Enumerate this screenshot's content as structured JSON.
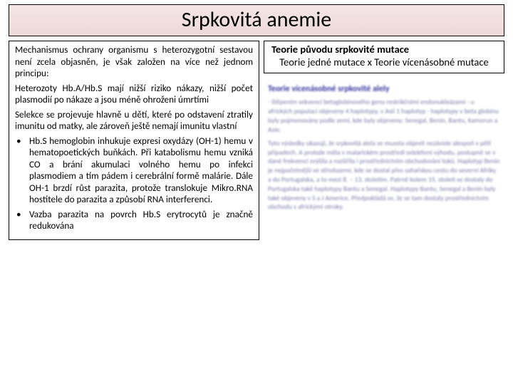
{
  "title": "Srpkovitá anemie",
  "left": {
    "p1": "Mechanismus ochrany organismu s heterozygotní sestavou není zcela objasněn, je však založen na více než jednom principu:",
    "p2": "Heterozoty Hb.A/Hb.S mají nižší riziko nákazy, nižší počet plasmodií po nákaze a jsou méně ohroženi úmrtími",
    "p3": "Selekce se projevuje hlavně u dětí, které po odstavení ztratily imunitu od matky, ale zároveň ještě nemají imunitu vlastní",
    "b1": "Hb.S hemoglobin inhukuje expresi oxydázy (OH-1) hemu v hematopoetických buňkách. Při katabolismu hemu vzniká CO a brání akumulaci volného hemu po infekci plasmodiem a tím pádem i cerebrální formě malárie. Dále OH-1 brzdí růst parazita, protože translokuje Mikro.RNA hostitele do parazita a způsobí RNA interferenci.",
    "b2": "Vazba parazita na povrch Hb.S erytrocytů je značně redukována"
  },
  "right": {
    "theory_title": "Teorie původu srpkovité mutace",
    "theory_sub": "Teorie jedné mutace x Teorie vícenásobné mutace",
    "blur_heading": "Teorie vícenásobné srpkovité alely",
    "blur_p1": "- štěpením sekvencí betaglobinového genu restrikčními endonukleázami\n- u afrických populací objeveny 4 haplotypy, v Asii 1 haplotyp\n- haplotypy v beta globinu byly pojmenovány podle zemí, kde byly objeveny: Senegal, Benin, Bantu, Kamerun a Asie.",
    "blur_p2": "Tyto výsledky ukazují, že srpkovitá alela se musela objevit nezávisle alespoň v pěti případech. A protože měla v malarickém prostředí selektivní výhodu, postupně se v dané frekvenci zvýšila a rozšířila i prostřednictvím obchodování toků. Haplotyp Benin je nejpočetnější ve středozemí, kde se dostal přes sahařskou cestu do severní Afriky a do Portugalska, a to mezi 8. – 13. stoletím. Patrně kolem 15. století se dostaly do Portugalska také haplotypy Bantu a Senegal. Haplotypy Bantu, Senegal a Benin byly také objeveny v S a J Americe. Předpokládá se, že se tam dostaly prostřednictvím obchodu s africkými otroky."
  },
  "colors": {
    "title_bg_top": "#f5e6e6",
    "title_bg_bottom": "#eed8d8",
    "border": "#000000",
    "text": "#000000",
    "blur_text": "#7a7aa8",
    "blur_heading": "#3838a0"
  }
}
